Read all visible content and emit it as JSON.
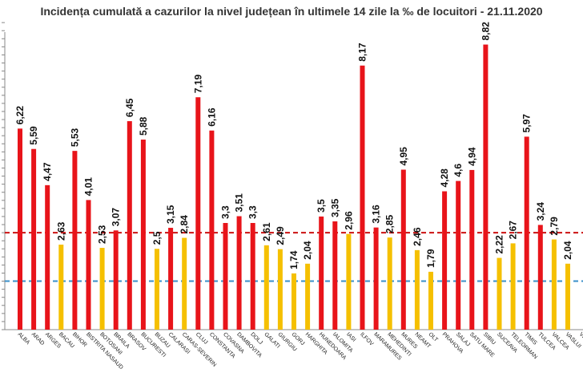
{
  "chart_data": {
    "type": "bar",
    "title": "Incidența cumulată a cazurilor la nivel județean în ultimele 14 zile la ‰ de locuitori - 21.11.2020",
    "categories": [
      "ALBA",
      "ARAD",
      "ARGES",
      "BACAU",
      "BIHOR",
      "BISTRITA NASAUD",
      "BOTOSANI",
      "BRAILA",
      "BRASOV",
      "BUCURESTI",
      "BUZAU",
      "CALARASI",
      "CARAS-SEVERIN",
      "CLUJ",
      "CONSTANTA",
      "COVASNA",
      "DAMBOVITA",
      "DOLJ",
      "GALATI",
      "GIURGIU",
      "GORJ",
      "HARGHITA",
      "HUNEDOARA",
      "IALOMITA",
      "IASI",
      "ILFOV",
      "MARAMURES",
      "MEHEDINTI",
      "MURES",
      "NEAMT",
      "OLT",
      "PRAHOVA",
      "SALAJ",
      "SATU MARE",
      "SIBIU",
      "SUCEAVA",
      "TELEORMAN",
      "TIMIS",
      "TULCEA",
      "VALCEA",
      "VASLUI",
      "VRANCEA"
    ],
    "values": [
      6.22,
      5.59,
      4.47,
      2.63,
      5.53,
      4.01,
      2.53,
      3.07,
      6.45,
      5.88,
      2.5,
      3.15,
      2.84,
      7.19,
      6.16,
      3.3,
      3.51,
      3.3,
      2.61,
      2.49,
      1.74,
      2.04,
      3.5,
      3.35,
      2.96,
      8.17,
      3.16,
      2.85,
      4.95,
      2.46,
      1.79,
      4.28,
      4.6,
      4.94,
      8.82,
      2.22,
      2.67,
      5.97,
      3.24,
      2.79,
      2.04,
      null
    ],
    "value_labels": [
      "6,22",
      "5,59",
      "4,47",
      "2,63",
      "5,53",
      "4,01",
      "2,53",
      "3,07",
      "6,45",
      "5,88",
      "2,5",
      "3,15",
      "2,84",
      "7,19",
      "6,16",
      "3,3",
      "3,51",
      "3,3",
      "2,61",
      "2,49",
      "1,74",
      "2,04",
      "3,5",
      "3,35",
      "2,96",
      "8,17",
      "3,16",
      "2,85",
      "4,95",
      "2,46",
      "1,79",
      "4,28",
      "4,6",
      "4,94",
      "8,82",
      "2,22",
      "2,67",
      "5,97",
      "3,24",
      "2,79",
      "2,04",
      ""
    ],
    "colors": [
      "#e8141a",
      "#e8141a",
      "#e8141a",
      "#f5c000",
      "#e8141a",
      "#e8141a",
      "#f5c000",
      "#e8141a",
      "#e8141a",
      "#e8141a",
      "#f5c000",
      "#e8141a",
      "#f5c000",
      "#e8141a",
      "#e8141a",
      "#e8141a",
      "#e8141a",
      "#e8141a",
      "#f5c000",
      "#f5c000",
      "#f5c000",
      "#f5c000",
      "#e8141a",
      "#e8141a",
      "#f5c000",
      "#e8141a",
      "#e8141a",
      "#f5c000",
      "#e8141a",
      "#f5c000",
      "#f5c000",
      "#e8141a",
      "#e8141a",
      "#e8141a",
      "#e8141a",
      "#f5c000",
      "#f5c000",
      "#e8141a",
      "#e8141a",
      "#f5c000",
      "#f5c000",
      "#f5c000"
    ],
    "reference_lines": [
      {
        "value": 3.0,
        "color": "#cc1111",
        "style": "dashed"
      },
      {
        "value": 1.5,
        "color": "#3a8fc9",
        "style": "dashed"
      }
    ],
    "ylim": [
      0,
      9.5
    ],
    "grid": false,
    "legend": "none"
  }
}
